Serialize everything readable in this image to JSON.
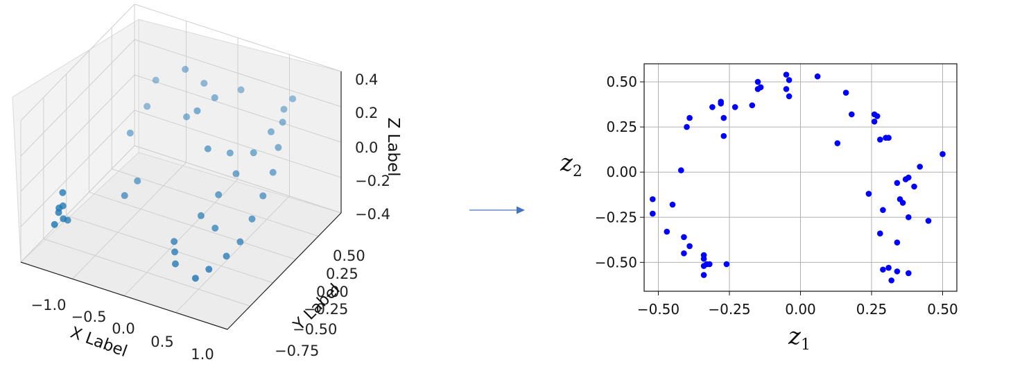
{
  "chart_data": [
    {
      "type": "scatter",
      "projection": "3d",
      "xlabel": "X Label",
      "ylabel": "Y Label",
      "zlabel": "Z Label",
      "x_ticks": [
        "−1.0",
        "−0.5",
        "0.0",
        "0.5",
        "1.0"
      ],
      "y_ticks": [
        "0.50",
        "0.25",
        "0.00",
        "−0.25",
        "−0.50",
        "−0.75"
      ],
      "z_ticks": [
        "0.4",
        "0.2",
        "0.0",
        "−0.2",
        "−0.4"
      ],
      "xlim": [
        -1.1,
        1.1
      ],
      "ylim": [
        -0.8,
        0.6
      ],
      "zlim": [
        -0.45,
        0.45
      ],
      "color": "#1f77b4",
      "grid": true,
      "points": [
        [
          -1.0,
          -0.45,
          -0.3
        ],
        [
          -0.98,
          -0.42,
          -0.27
        ],
        [
          -1.0,
          -0.5,
          -0.35
        ],
        [
          -0.95,
          -0.45,
          -0.33
        ],
        [
          -1.0,
          -0.4,
          -0.2
        ],
        [
          -0.97,
          -0.48,
          -0.25
        ],
        [
          -0.99,
          -0.35,
          -0.4
        ],
        [
          -0.8,
          0.2,
          -0.1
        ],
        [
          -0.75,
          0.35,
          0.0
        ],
        [
          -0.7,
          0.4,
          0.15
        ],
        [
          -0.6,
          -0.1,
          -0.3
        ],
        [
          -0.55,
          0.0,
          -0.25
        ],
        [
          -0.3,
          0.3,
          0.35
        ],
        [
          -0.2,
          0.2,
          0.12
        ],
        [
          -0.1,
          0.3,
          0.3
        ],
        [
          0.0,
          0.1,
          0.25
        ],
        [
          0.1,
          0.2,
          0.3
        ],
        [
          0.2,
          0.0,
          0.1
        ],
        [
          0.25,
          0.35,
          0.3
        ],
        [
          0.35,
          0.1,
          0.05
        ],
        [
          0.1,
          -0.3,
          -0.35
        ],
        [
          0.15,
          -0.35,
          -0.38
        ],
        [
          0.2,
          -0.4,
          -0.42
        ],
        [
          0.3,
          -0.2,
          -0.2
        ],
        [
          0.4,
          -0.1,
          -0.1
        ],
        [
          0.5,
          0.0,
          0.0
        ],
        [
          0.6,
          0.1,
          0.1
        ],
        [
          0.7,
          0.2,
          0.2
        ],
        [
          0.75,
          0.3,
          0.3
        ],
        [
          0.8,
          0.35,
          0.35
        ],
        [
          0.78,
          0.25,
          0.25
        ],
        [
          0.82,
          0.15,
          0.15
        ],
        [
          0.85,
          0.05,
          0.05
        ],
        [
          0.83,
          -0.05,
          -0.05
        ],
        [
          0.8,
          -0.15,
          -0.15
        ],
        [
          0.76,
          -0.25,
          -0.25
        ],
        [
          0.7,
          -0.35,
          -0.3
        ],
        [
          0.6,
          -0.45,
          -0.35
        ],
        [
          0.5,
          -0.5,
          -0.4
        ],
        [
          0.45,
          -0.2,
          -0.25
        ]
      ]
    },
    {
      "type": "scatter",
      "xlabel": "z1",
      "ylabel": "z2",
      "xlim": [
        -0.55,
        0.55
      ],
      "ylim": [
        -0.66,
        0.6
      ],
      "x_ticks": [
        "−0.50",
        "−0.25",
        "0.00",
        "0.25",
        "0.50"
      ],
      "y_ticks": [
        "0.50",
        "0.25",
        "0.00",
        "−0.25",
        "−0.50"
      ],
      "x_tick_values": [
        -0.5,
        -0.25,
        0,
        0.25,
        0.5
      ],
      "y_tick_values": [
        0.5,
        0.25,
        0,
        -0.25,
        -0.5
      ],
      "grid": true,
      "color": "#0000ff",
      "points": [
        [
          -0.52,
          -0.15
        ],
        [
          -0.52,
          -0.23
        ],
        [
          -0.45,
          -0.18
        ],
        [
          -0.47,
          -0.33
        ],
        [
          -0.42,
          0.01
        ],
        [
          -0.41,
          -0.36
        ],
        [
          -0.41,
          -0.45
        ],
        [
          -0.39,
          -0.41
        ],
        [
          -0.4,
          0.25
        ],
        [
          -0.39,
          0.3
        ],
        [
          -0.34,
          -0.46
        ],
        [
          -0.34,
          -0.48
        ],
        [
          -0.34,
          -0.52
        ],
        [
          -0.34,
          -0.57
        ],
        [
          -0.33,
          -0.51
        ],
        [
          -0.32,
          -0.51
        ],
        [
          -0.31,
          0.36
        ],
        [
          -0.28,
          0.38
        ],
        [
          -0.28,
          0.39
        ],
        [
          -0.27,
          0.3
        ],
        [
          -0.27,
          0.2
        ],
        [
          -0.26,
          -0.51
        ],
        [
          -0.23,
          0.36
        ],
        [
          -0.17,
          0.37
        ],
        [
          -0.15,
          0.5
        ],
        [
          -0.15,
          0.46
        ],
        [
          -0.14,
          0.47
        ],
        [
          -0.05,
          0.54
        ],
        [
          -0.05,
          0.46
        ],
        [
          -0.04,
          0.51
        ],
        [
          -0.04,
          0.42
        ],
        [
          0.06,
          0.53
        ],
        [
          0.13,
          0.16
        ],
        [
          0.16,
          0.44
        ],
        [
          0.18,
          0.32
        ],
        [
          0.24,
          -0.12
        ],
        [
          0.26,
          0.32
        ],
        [
          0.26,
          0.28
        ],
        [
          0.27,
          0.31
        ],
        [
          0.28,
          0.18
        ],
        [
          0.28,
          -0.34
        ],
        [
          0.29,
          -0.21
        ],
        [
          0.29,
          -0.54
        ],
        [
          0.3,
          0.19
        ],
        [
          0.31,
          0.19
        ],
        [
          0.31,
          -0.53
        ],
        [
          0.32,
          -0.6
        ],
        [
          0.34,
          -0.06
        ],
        [
          0.34,
          -0.39
        ],
        [
          0.34,
          -0.55
        ],
        [
          0.35,
          -0.15
        ],
        [
          0.36,
          -0.17
        ],
        [
          0.37,
          -0.04
        ],
        [
          0.38,
          -0.03
        ],
        [
          0.38,
          -0.56
        ],
        [
          0.38,
          -0.25
        ],
        [
          0.4,
          -0.08
        ],
        [
          0.42,
          0.03
        ],
        [
          0.45,
          -0.27
        ],
        [
          0.5,
          0.1
        ]
      ]
    }
  ],
  "arrow": {
    "color": "#4472c4"
  }
}
